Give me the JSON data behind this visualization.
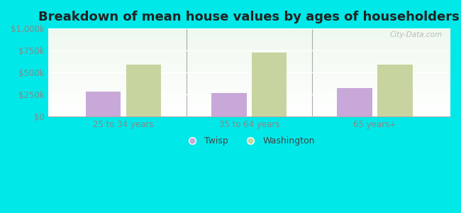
{
  "title": "Breakdown of mean house values by ages of householders",
  "categories": [
    "25 to 34 years",
    "35 to 64 years",
    "65 years+"
  ],
  "twisp_values": [
    280000,
    265000,
    325000
  ],
  "washington_values": [
    590000,
    725000,
    590000
  ],
  "twisp_color": "#c8a8d8",
  "washington_color": "#c8d4a0",
  "ylim": [
    0,
    1000000
  ],
  "yticks": [
    0,
    250000,
    500000,
    750000,
    1000000
  ],
  "ytick_labels": [
    "$0",
    "$250k",
    "$500k",
    "$750k",
    "$1,000k"
  ],
  "background_color": "#00e8e8",
  "legend_twisp": "Twisp",
  "legend_washington": "Washington",
  "bar_width": 0.28,
  "title_fontsize": 13,
  "tick_fontsize": 8.5,
  "legend_fontsize": 9,
  "watermark": "City-Data.com"
}
